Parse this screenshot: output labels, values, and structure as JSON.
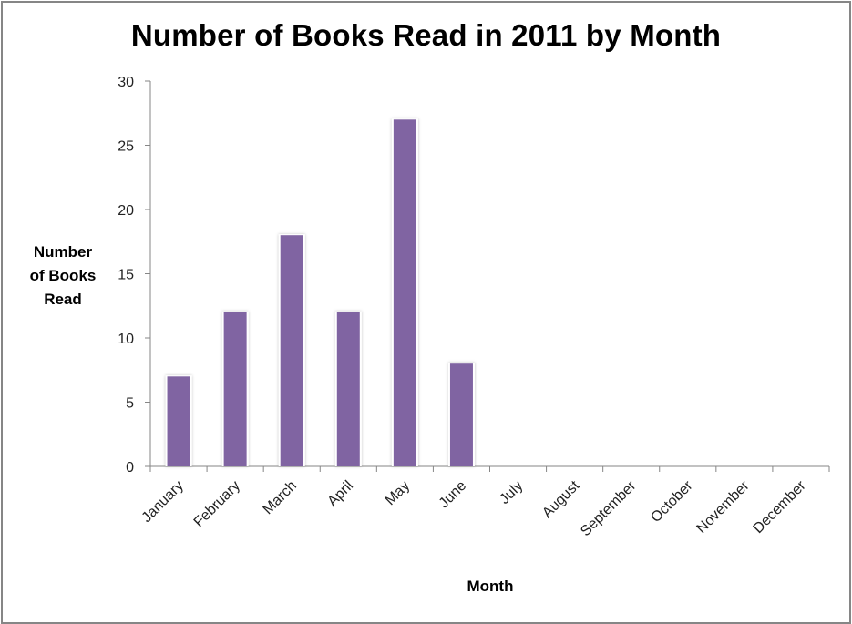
{
  "chart_data": {
    "type": "bar",
    "title": "Number of Books Read in 2011 by Month",
    "xlabel": "Month",
    "ylabel": "Number of Books Read",
    "categories": [
      "January",
      "February",
      "March",
      "April",
      "May",
      "June",
      "July",
      "August",
      "September",
      "October",
      "November",
      "December"
    ],
    "values": [
      7,
      12,
      18,
      12,
      27,
      8,
      0,
      0,
      0,
      0,
      0,
      0
    ],
    "ylim": [
      0,
      30
    ],
    "yticks": [
      0,
      5,
      10,
      15,
      20,
      25,
      30
    ],
    "grid": false,
    "legend": "none",
    "bar_color": "#8064A2"
  },
  "labels": {
    "title": "Number of Books Read in 2011 by Month",
    "ylabel_lines": [
      "Number",
      "of Books",
      "Read"
    ],
    "xlabel": "Month"
  }
}
